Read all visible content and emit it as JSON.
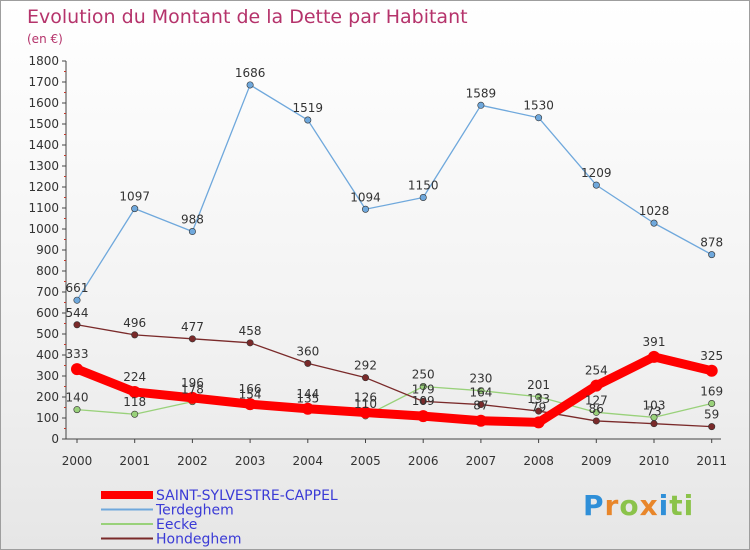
{
  "title": "Evolution du Montant de la Dette par Habitant",
  "subtitle": "(en €)",
  "logo": "Proxiti",
  "chart_data": {
    "type": "line",
    "title": "Evolution du Montant de la Dette par Habitant",
    "ylabel": "(en €)",
    "xlabel": "",
    "ylim": [
      0,
      1800
    ],
    "ytick_step": 100,
    "grid": false,
    "legend_position": "bottom-left",
    "x": [
      "2000",
      "2001",
      "2002",
      "2003",
      "2004",
      "2005",
      "2006",
      "2007",
      "2008",
      "2009",
      "2010",
      "2011"
    ],
    "series": [
      {
        "name": "SAINT-SYLVESTRE-CAPPEL",
        "color": "#ff0000",
        "emphasis": true,
        "values": [
          333,
          224,
          196,
          166,
          144,
          126,
          109,
          87,
          79,
          254,
          391,
          325
        ],
        "labels": [
          "333",
          "224",
          "196",
          "166",
          "144",
          "126",
          "109",
          "87",
          "79",
          "254",
          "391",
          "325"
        ]
      },
      {
        "name": "Terdeghem",
        "color": "#6fa8dc",
        "values": [
          661,
          1097,
          988,
          1686,
          1519,
          1094,
          1150,
          1589,
          1530,
          1209,
          1028,
          878
        ],
        "labels": [
          "661",
          "1097",
          "988",
          "1686",
          "1519",
          "1094",
          "1150",
          "1589",
          "1530",
          "1209",
          "1028",
          "878"
        ]
      },
      {
        "name": "Eecke",
        "color": "#99d17a",
        "values": [
          140,
          118,
          178,
          154,
          135,
          110,
          250,
          230,
          201,
          127,
          103,
          169
        ],
        "labels": [
          "140",
          "118",
          "178",
          "154",
          "135",
          "110",
          "250",
          "230",
          "201",
          "127",
          "103",
          "169"
        ]
      },
      {
        "name": "Hondeghem",
        "color": "#7a2a2a",
        "values": [
          544,
          496,
          477,
          458,
          360,
          292,
          179,
          164,
          133,
          86,
          73,
          59
        ],
        "labels": [
          "544",
          "496",
          "477",
          "458",
          "360",
          "292",
          "179",
          "164",
          "133",
          "86",
          "73",
          "59"
        ]
      }
    ]
  }
}
